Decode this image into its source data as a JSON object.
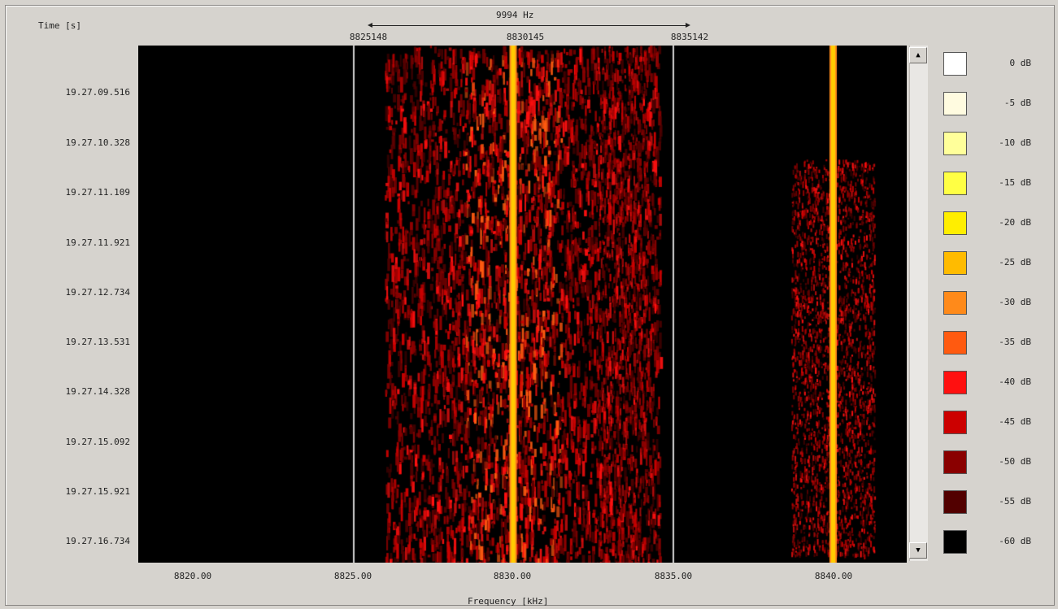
{
  "labels": {
    "time_axis": "Time [s]",
    "freq_axis": "Frequency [kHz]",
    "bandwidth": "9994 Hz"
  },
  "top_markers": [
    "8825148",
    "8830145",
    "8835142"
  ],
  "time_labels": [
    "19.27.09.516",
    "19.27.10.328",
    "19.27.11.109",
    "19.27.11.921",
    "19.27.12.734",
    "19.27.13.531",
    "19.27.14.328",
    "19.27.15.092",
    "19.27.15.921",
    "19.27.16.734"
  ],
  "x_ticks": [
    "8820.00",
    "8825.00",
    "8830.00",
    "8835.00",
    "8840.00"
  ],
  "scrollbar": {
    "up_icon": "▲",
    "down_icon": "▼"
  },
  "legend": [
    {
      "label": "0 dB",
      "color": "#ffffff"
    },
    {
      "label": "-5 dB",
      "color": "#fffbe0"
    },
    {
      "label": "-10 dB",
      "color": "#ffff9a"
    },
    {
      "label": "-15 dB",
      "color": "#ffff44"
    },
    {
      "label": "-20 dB",
      "color": "#ffee00"
    },
    {
      "label": "-25 dB",
      "color": "#ffbb00"
    },
    {
      "label": "-30 dB",
      "color": "#ff8a1a"
    },
    {
      "label": "-35 dB",
      "color": "#ff5a10"
    },
    {
      "label": "-40 dB",
      "color": "#ff1010"
    },
    {
      "label": "-45 dB",
      "color": "#cc0000"
    },
    {
      "label": "-50 dB",
      "color": "#8a0000"
    },
    {
      "label": "-55 dB",
      "color": "#520000"
    },
    {
      "label": "-60 dB",
      "color": "#000000"
    }
  ],
  "signals": {
    "carrier_freqs_khz": [
      8830.0,
      8840.0
    ],
    "band_edges_khz": [
      8825.0,
      8835.0
    ]
  }
}
